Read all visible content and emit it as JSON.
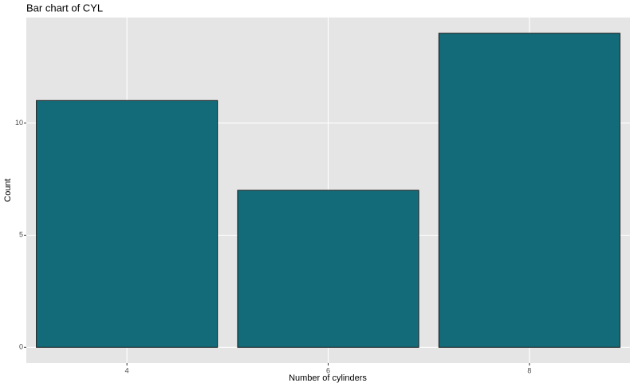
{
  "chart_data": {
    "type": "bar",
    "title": "Bar chart of CYL",
    "xlabel": "Number of cylinders",
    "ylabel": "Count",
    "categories": [
      "4",
      "6",
      "8"
    ],
    "values": [
      11,
      7,
      14
    ],
    "color": "#136b79",
    "edge_color": "#1a1a1a",
    "ylim": [
      -0.7,
      14.7
    ],
    "yticks": [
      0,
      5,
      10
    ],
    "grid": true
  }
}
